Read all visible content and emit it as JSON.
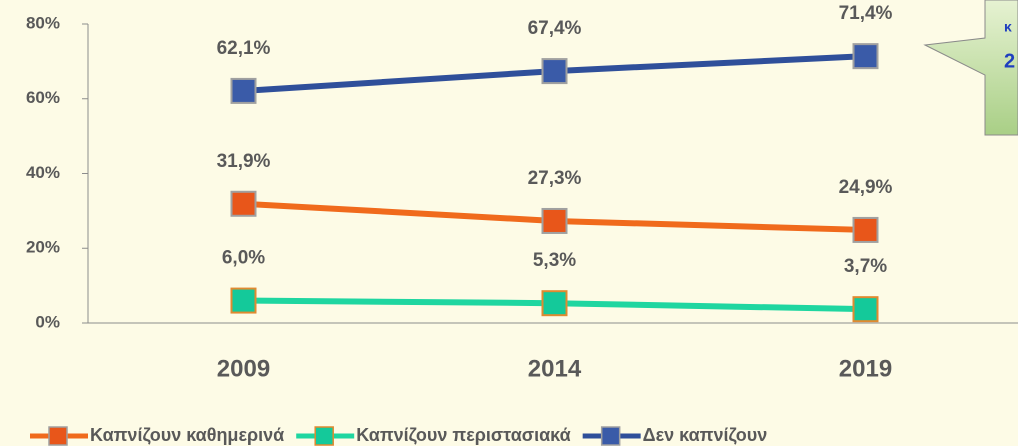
{
  "chart_data": {
    "type": "line",
    "categories": [
      "2009",
      "2014",
      "2019"
    ],
    "series": [
      {
        "name": "Καπνίζουν καθημερινά",
        "color": "#f06a1c",
        "marker_color": "#e8561a",
        "marker_edge": "#a0a0a0",
        "values": [
          31.9,
          27.3,
          24.9
        ],
        "value_labels": [
          "31,9%",
          "27,3%",
          "24,9%"
        ]
      },
      {
        "name": "Καπνίζουν περιστασιακά",
        "color": "#1fd6a0",
        "marker_color": "#14c99a",
        "marker_edge": "#e08a30",
        "values": [
          6.0,
          5.3,
          3.7
        ],
        "value_labels": [
          "6,0%",
          "5,3%",
          "3,7%"
        ]
      },
      {
        "name": "Δεν καπνίζουν",
        "color": "#2f4f9a",
        "marker_color": "#3a5ba8",
        "marker_edge": "#a0a0a0",
        "values": [
          62.1,
          67.4,
          71.4
        ],
        "value_labels": [
          "62,1%",
          "67,4%",
          "71,4%"
        ]
      }
    ],
    "ylim": [
      0,
      80
    ],
    "yticks": [
      {
        "value": 0,
        "label": "0%"
      },
      {
        "value": 20,
        "label": "20%"
      },
      {
        "value": 40,
        "label": "40%"
      },
      {
        "value": 60,
        "label": "60%"
      },
      {
        "value": 80,
        "label": "80%"
      }
    ],
    "legend": "bottom",
    "annotation": [
      "κ",
      "2"
    ]
  }
}
